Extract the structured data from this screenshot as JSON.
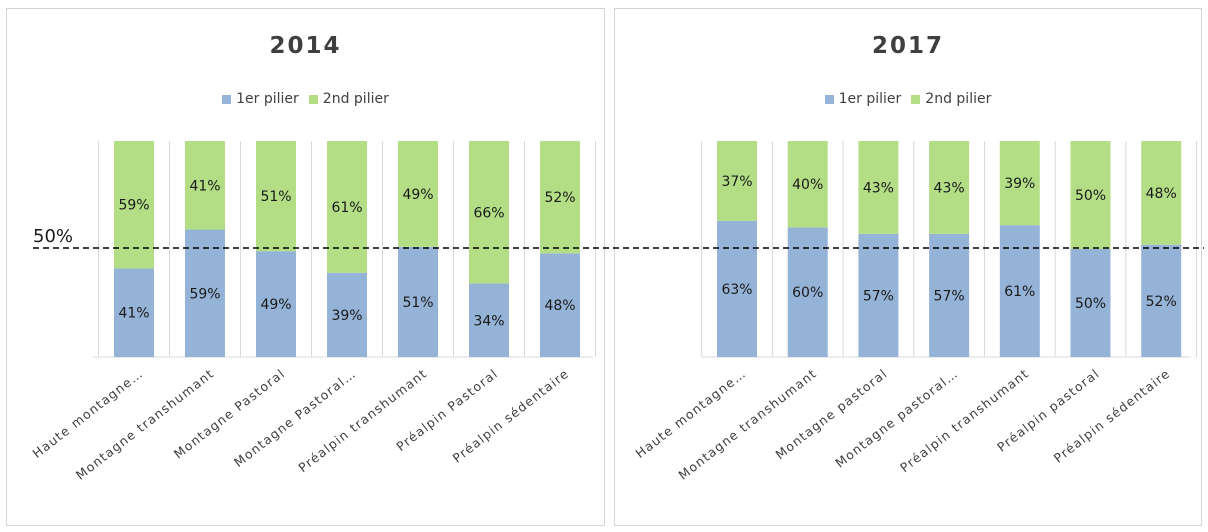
{
  "reference": {
    "label": "50%",
    "value": 50
  },
  "colors": {
    "pilier1": "#95b3d7",
    "pilier2": "#b4de86",
    "axis": "#d9d9d9",
    "ref_line": "#000000"
  },
  "chart_data": [
    {
      "type": "bar",
      "stacked": true,
      "title": "2014",
      "categories": [
        "Haute montagne…",
        "Montagne transhumant",
        "Montagne Pastoral",
        "Montagne Pastoral…",
        "Préalpin transhumant",
        "Préalpin Pastoral",
        "Préalpin sédentaire"
      ],
      "series": [
        {
          "name": "1er pilier",
          "values": [
            41,
            59,
            49,
            39,
            51,
            34,
            48
          ],
          "labels": [
            "41%",
            "59%",
            "49%",
            "39%",
            "51%",
            "34%",
            "48%"
          ]
        },
        {
          "name": "2nd pilier",
          "values": [
            59,
            41,
            51,
            61,
            49,
            66,
            52
          ],
          "labels": [
            "59%",
            "41%",
            "51%",
            "61%",
            "49%",
            "66%",
            "52%"
          ]
        }
      ],
      "ylim": [
        0,
        100
      ],
      "legend": "top",
      "grid": false
    },
    {
      "type": "bar",
      "stacked": true,
      "title": "2017",
      "categories": [
        "Haute montagne…",
        "Montagne transhumant",
        "Montagne pastoral",
        "Montagne pastoral…",
        "Préalpin transhumant",
        "Préalpin pastoral",
        "Préalpin sédentaire"
      ],
      "series": [
        {
          "name": "1er pilier",
          "values": [
            63,
            60,
            57,
            57,
            61,
            50,
            52
          ],
          "labels": [
            "63%",
            "60%",
            "57%",
            "57%",
            "61%",
            "50%",
            "52%"
          ]
        },
        {
          "name": "2nd pilier",
          "values": [
            37,
            40,
            43,
            43,
            39,
            50,
            48
          ],
          "labels": [
            "37%",
            "40%",
            "43%",
            "43%",
            "39%",
            "50%",
            "48%"
          ]
        }
      ],
      "ylim": [
        0,
        100
      ],
      "legend": "top",
      "grid": false
    }
  ]
}
